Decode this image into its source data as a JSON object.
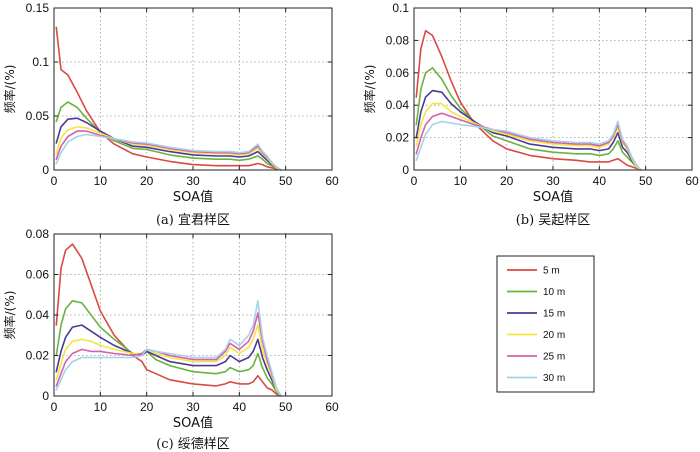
{
  "chart_data": [
    {
      "type": "line",
      "title": "",
      "caption": "(a) 宜君样区",
      "xlabel": "SOA值",
      "ylabel": "频率/(%)",
      "xlim": [
        0,
        60
      ],
      "ylim": [
        0,
        0.15
      ],
      "xticks": [
        "0",
        "10",
        "20",
        "30",
        "40",
        "50",
        "60"
      ],
      "yticks": [
        "0",
        "0.05",
        "0.1",
        "0.15"
      ],
      "x": [
        0.5,
        1.5,
        3,
        5,
        7,
        10,
        13,
        17,
        20,
        25,
        30,
        35,
        38,
        40,
        42,
        44,
        45,
        46,
        47,
        48,
        49
      ],
      "series": [
        {
          "name": "5 m",
          "values": [
            0.132,
            0.093,
            0.088,
            0.072,
            0.055,
            0.035,
            0.024,
            0.015,
            0.012,
            0.008,
            0.005,
            0.004,
            0.004,
            0.004,
            0.004,
            0.006,
            0.005,
            0.003,
            0.002,
            0.001,
            0.0
          ]
        },
        {
          "name": "10 m",
          "values": [
            0.045,
            0.058,
            0.063,
            0.058,
            0.048,
            0.035,
            0.027,
            0.02,
            0.019,
            0.014,
            0.011,
            0.01,
            0.01,
            0.009,
            0.01,
            0.013,
            0.01,
            0.006,
            0.004,
            0.002,
            0.0
          ]
        },
        {
          "name": "15 m",
          "values": [
            0.025,
            0.04,
            0.047,
            0.048,
            0.044,
            0.036,
            0.029,
            0.022,
            0.021,
            0.017,
            0.014,
            0.013,
            0.013,
            0.012,
            0.013,
            0.017,
            0.013,
            0.009,
            0.005,
            0.002,
            0.0
          ]
        },
        {
          "name": "20 m",
          "values": [
            0.015,
            0.03,
            0.037,
            0.04,
            0.039,
            0.034,
            0.029,
            0.024,
            0.023,
            0.019,
            0.016,
            0.015,
            0.015,
            0.014,
            0.015,
            0.02,
            0.015,
            0.011,
            0.006,
            0.002,
            0.0
          ]
        },
        {
          "name": "25 m",
          "values": [
            0.01,
            0.022,
            0.031,
            0.036,
            0.036,
            0.032,
            0.029,
            0.025,
            0.024,
            0.02,
            0.017,
            0.016,
            0.016,
            0.015,
            0.016,
            0.022,
            0.016,
            0.012,
            0.007,
            0.003,
            0.0
          ]
        },
        {
          "name": "30 m",
          "values": [
            0.006,
            0.016,
            0.026,
            0.031,
            0.033,
            0.031,
            0.029,
            0.026,
            0.025,
            0.021,
            0.018,
            0.017,
            0.017,
            0.016,
            0.017,
            0.024,
            0.017,
            0.013,
            0.007,
            0.003,
            0.0
          ]
        }
      ]
    },
    {
      "type": "line",
      "title": "",
      "caption": "(b) 吴起样区",
      "xlabel": "SOA值",
      "ylabel": "频率/(%)",
      "xlim": [
        0,
        60
      ],
      "ylim": [
        0,
        0.1
      ],
      "xticks": [
        "0",
        "10",
        "20",
        "30",
        "40",
        "50",
        "60"
      ],
      "yticks": [
        "0",
        "0.02",
        "0.04",
        "0.06",
        "0.08",
        "0.1"
      ],
      "x": [
        0.5,
        1.5,
        2.5,
        4,
        6,
        8,
        10,
        13,
        17,
        20,
        25,
        30,
        35,
        38,
        40,
        42,
        43,
        44,
        45,
        46,
        47,
        48,
        49
      ],
      "series": [
        {
          "name": "5 m",
          "values": [
            0.045,
            0.075,
            0.086,
            0.083,
            0.07,
            0.055,
            0.042,
            0.029,
            0.018,
            0.013,
            0.009,
            0.007,
            0.006,
            0.005,
            0.005,
            0.005,
            0.006,
            0.007,
            0.005,
            0.003,
            0.002,
            0.001,
            0.0
          ]
        },
        {
          "name": "10 m",
          "values": [
            0.028,
            0.05,
            0.06,
            0.063,
            0.056,
            0.046,
            0.038,
            0.03,
            0.021,
            0.018,
            0.013,
            0.011,
            0.01,
            0.01,
            0.009,
            0.01,
            0.013,
            0.018,
            0.011,
            0.008,
            0.005,
            0.002,
            0.0
          ]
        },
        {
          "name": "15 m",
          "values": [
            0.02,
            0.036,
            0.045,
            0.049,
            0.048,
            0.041,
            0.036,
            0.03,
            0.023,
            0.021,
            0.016,
            0.014,
            0.013,
            0.013,
            0.012,
            0.013,
            0.017,
            0.023,
            0.014,
            0.011,
            0.006,
            0.002,
            0.0
          ]
        },
        {
          "name": "20 m",
          "values": [
            0.015,
            0.028,
            0.036,
            0.041,
            0.041,
            0.036,
            0.033,
            0.029,
            0.024,
            0.022,
            0.018,
            0.016,
            0.015,
            0.015,
            0.014,
            0.016,
            0.02,
            0.026,
            0.017,
            0.013,
            0.007,
            0.002,
            0.0
          ]
        },
        {
          "name": "25 m",
          "values": [
            0.01,
            0.02,
            0.028,
            0.033,
            0.035,
            0.033,
            0.031,
            0.028,
            0.025,
            0.023,
            0.019,
            0.017,
            0.016,
            0.016,
            0.015,
            0.017,
            0.021,
            0.028,
            0.018,
            0.014,
            0.008,
            0.003,
            0.0
          ]
        },
        {
          "name": "30 m",
          "values": [
            0.006,
            0.014,
            0.022,
            0.028,
            0.03,
            0.029,
            0.028,
            0.027,
            0.025,
            0.024,
            0.02,
            0.018,
            0.017,
            0.017,
            0.016,
            0.018,
            0.022,
            0.03,
            0.019,
            0.015,
            0.008,
            0.003,
            0.0
          ]
        }
      ]
    },
    {
      "type": "line",
      "title": "",
      "caption": "(c) 绥德样区",
      "xlabel": "SOA值",
      "ylabel": "频率/(%)",
      "xlim": [
        0,
        60
      ],
      "ylim": [
        0,
        0.08
      ],
      "xticks": [
        "0",
        "10",
        "20",
        "30",
        "40",
        "50",
        "60"
      ],
      "yticks": [
        "0",
        "0.02",
        "0.04",
        "0.06",
        "0.08"
      ],
      "x": [
        0.5,
        1.5,
        2.5,
        4,
        6,
        8,
        10,
        13,
        17,
        19,
        20,
        22,
        25,
        30,
        35,
        37,
        38,
        40,
        42,
        43,
        44,
        45,
        46,
        47,
        48,
        49
      ],
      "series": [
        {
          "name": "5 m",
          "values": [
            0.035,
            0.063,
            0.072,
            0.075,
            0.068,
            0.055,
            0.042,
            0.03,
            0.02,
            0.017,
            0.013,
            0.011,
            0.008,
            0.006,
            0.005,
            0.006,
            0.007,
            0.006,
            0.006,
            0.007,
            0.01,
            0.007,
            0.004,
            0.003,
            0.001,
            0.0
          ]
        },
        {
          "name": "10 m",
          "values": [
            0.02,
            0.035,
            0.043,
            0.047,
            0.046,
            0.04,
            0.034,
            0.028,
            0.021,
            0.02,
            0.022,
            0.018,
            0.015,
            0.012,
            0.011,
            0.012,
            0.014,
            0.012,
            0.013,
            0.015,
            0.021,
            0.014,
            0.009,
            0.006,
            0.002,
            0.0
          ]
        },
        {
          "name": "15 m",
          "values": [
            0.012,
            0.022,
            0.029,
            0.034,
            0.035,
            0.032,
            0.029,
            0.025,
            0.021,
            0.02,
            0.022,
            0.02,
            0.017,
            0.015,
            0.015,
            0.017,
            0.02,
            0.017,
            0.019,
            0.022,
            0.028,
            0.019,
            0.013,
            0.008,
            0.003,
            0.0
          ]
        },
        {
          "name": "20 m",
          "values": [
            0.008,
            0.016,
            0.023,
            0.027,
            0.028,
            0.027,
            0.025,
            0.023,
            0.021,
            0.021,
            0.023,
            0.021,
            0.019,
            0.017,
            0.017,
            0.02,
            0.024,
            0.021,
            0.024,
            0.028,
            0.035,
            0.023,
            0.016,
            0.01,
            0.003,
            0.0
          ]
        },
        {
          "name": "25 m",
          "values": [
            0.005,
            0.011,
            0.017,
            0.021,
            0.023,
            0.022,
            0.022,
            0.021,
            0.02,
            0.021,
            0.023,
            0.022,
            0.02,
            0.018,
            0.018,
            0.022,
            0.026,
            0.023,
            0.027,
            0.032,
            0.041,
            0.027,
            0.018,
            0.011,
            0.004,
            0.0
          ]
        },
        {
          "name": "30 m",
          "values": [
            0.003,
            0.008,
            0.013,
            0.017,
            0.019,
            0.019,
            0.019,
            0.019,
            0.019,
            0.02,
            0.023,
            0.022,
            0.021,
            0.019,
            0.019,
            0.023,
            0.028,
            0.025,
            0.03,
            0.035,
            0.047,
            0.029,
            0.02,
            0.012,
            0.004,
            0.0
          ]
        }
      ]
    }
  ],
  "legend": {
    "entries": [
      "5 m",
      "10 m",
      "15 m",
      "20 m",
      "25 m",
      "30 m"
    ],
    "colors": [
      "#d94a45",
      "#69b33e",
      "#4b3a96",
      "#f3e640",
      "#d760ad",
      "#a6d2ea"
    ]
  }
}
